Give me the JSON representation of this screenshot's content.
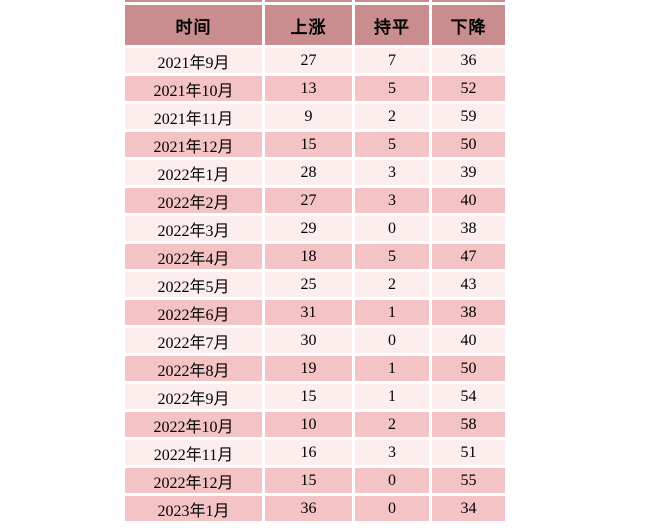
{
  "colors": {
    "header_bg": "#c98c8f",
    "row_dark_bg": "#f4c3c6",
    "row_light_bg": "#fdeeee",
    "grid": "#ffffff",
    "text": "#000000"
  },
  "chart_data": {
    "type": "table",
    "title": "",
    "columns": [
      "时间",
      "上涨",
      "持平",
      "下降"
    ],
    "rows": [
      {
        "cells": [
          "2021年9月",
          27,
          7,
          36
        ],
        "shade": "light"
      },
      {
        "cells": [
          "2021年10月",
          13,
          5,
          52
        ],
        "shade": "dark"
      },
      {
        "cells": [
          "2021年11月",
          9,
          2,
          59
        ],
        "shade": "light"
      },
      {
        "cells": [
          "2021年12月",
          15,
          5,
          50
        ],
        "shade": "dark"
      },
      {
        "cells": [
          "2022年1月",
          28,
          3,
          39
        ],
        "shade": "light"
      },
      {
        "cells": [
          "2022年2月",
          27,
          3,
          40
        ],
        "shade": "dark"
      },
      {
        "cells": [
          "2022年3月",
          29,
          0,
          38
        ],
        "shade": "light"
      },
      {
        "cells": [
          "2022年4月",
          18,
          5,
          47
        ],
        "shade": "dark"
      },
      {
        "cells": [
          "2022年5月",
          25,
          2,
          43
        ],
        "shade": "light"
      },
      {
        "cells": [
          "2022年6月",
          31,
          1,
          38
        ],
        "shade": "dark"
      },
      {
        "cells": [
          "2022年7月",
          30,
          0,
          40
        ],
        "shade": "light"
      },
      {
        "cells": [
          "2022年8月",
          19,
          1,
          50
        ],
        "shade": "dark"
      },
      {
        "cells": [
          "2022年9月",
          15,
          1,
          54
        ],
        "shade": "light"
      },
      {
        "cells": [
          "2022年10月",
          10,
          2,
          58
        ],
        "shade": "dark"
      },
      {
        "cells": [
          "2022年11月",
          16,
          3,
          51
        ],
        "shade": "light"
      },
      {
        "cells": [
          "2022年12月",
          15,
          0,
          55
        ],
        "shade": "dark"
      },
      {
        "cells": [
          "2023年1月",
          36,
          0,
          34
        ],
        "shade": "dark"
      }
    ]
  }
}
